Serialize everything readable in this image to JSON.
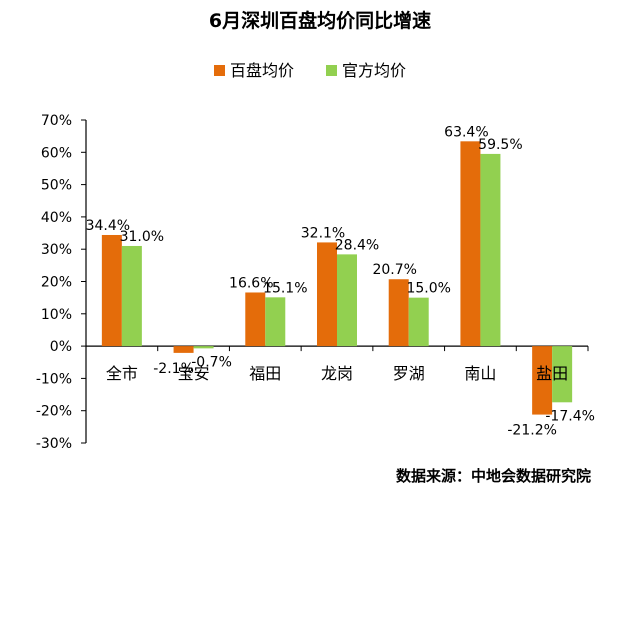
{
  "chart_data": {
    "type": "bar",
    "title": "6月深圳百盘均价同比增速",
    "categories": [
      "全市",
      "宝安",
      "福田",
      "龙岗",
      "罗湖",
      "南山",
      "盐田"
    ],
    "series": [
      {
        "name": "百盘均价",
        "values": [
          34.4,
          -2.1,
          16.6,
          32.1,
          20.7,
          63.4,
          -21.2
        ],
        "labels": [
          "34.4%",
          "-2.1%",
          "16.6%",
          "32.1%",
          "20.7%",
          "63.4%",
          "-21.2%"
        ],
        "color": "#E46C0A"
      },
      {
        "name": "官方均价",
        "values": [
          31.0,
          -0.7,
          15.1,
          28.4,
          15.0,
          59.5,
          -17.4
        ],
        "labels": [
          "31.0%",
          "-0.7%",
          "15.1%",
          "28.4%",
          "15.0%",
          "59.5%",
          "-17.4%"
        ],
        "color": "#92D050"
      }
    ],
    "ylim": [
      -30,
      70
    ],
    "yticks": [
      "70%",
      "60%",
      "50%",
      "40%",
      "30%",
      "20%",
      "10%",
      "0%",
      "-10%",
      "-20%",
      "-30%"
    ],
    "ytick_values": [
      70,
      60,
      50,
      40,
      30,
      20,
      10,
      0,
      -10,
      -20,
      -30
    ],
    "legend_position": "top-center",
    "grid": false
  },
  "source": "数据来源：中地会数据研究院"
}
